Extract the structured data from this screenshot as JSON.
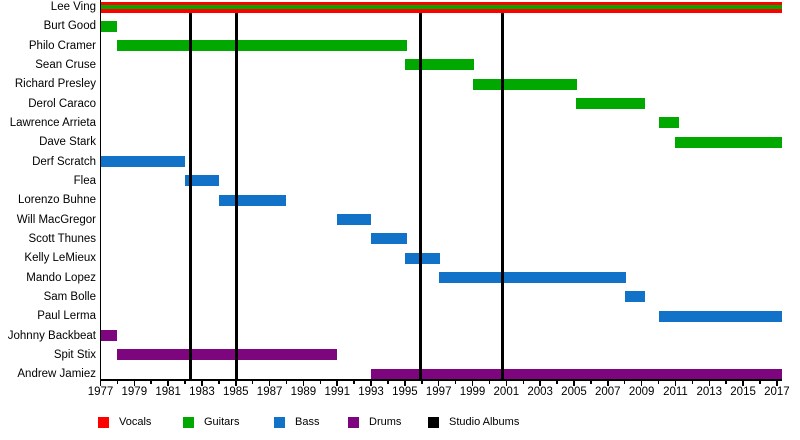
{
  "chart_data": {
    "type": "timeline",
    "description": "Band members timeline (gantt-style) with studio album markers",
    "x_axis": {
      "start": 1977,
      "end": 2017.3,
      "labeled_ticks": [
        1977,
        1979,
        1981,
        1983,
        1985,
        1987,
        1989,
        1991,
        1993,
        1995,
        1997,
        1999,
        2001,
        2003,
        2005,
        2007,
        2009,
        2011,
        2013,
        2015,
        2017
      ],
      "minor_tick_every_year": true
    },
    "colors": {
      "vocals": "#ff0000",
      "guitars": "#00a800",
      "bass": "#1272c8",
      "drums": "#7d057d",
      "albums": "#000000"
    },
    "rows": [
      {
        "name": "Lee Ving",
        "periods": [
          {
            "start": 1977,
            "end": 2017.3,
            "roles": [
              "vocals",
              "guitars"
            ]
          }
        ]
      },
      {
        "name": "Burt Good",
        "periods": [
          {
            "start": 1977,
            "end": 1978,
            "roles": [
              "guitars"
            ]
          }
        ]
      },
      {
        "name": "Philo Cramer",
        "periods": [
          {
            "start": 1978,
            "end": 1995.1,
            "roles": [
              "guitars"
            ]
          }
        ]
      },
      {
        "name": "Sean Cruse",
        "periods": [
          {
            "start": 1995,
            "end": 1999.1,
            "roles": [
              "guitars"
            ]
          }
        ]
      },
      {
        "name": "Richard Presley",
        "periods": [
          {
            "start": 1999,
            "end": 2005.2,
            "roles": [
              "guitars"
            ]
          }
        ]
      },
      {
        "name": "Derol Caraco",
        "periods": [
          {
            "start": 2005.1,
            "end": 2009.2,
            "roles": [
              "guitars"
            ]
          }
        ]
      },
      {
        "name": "Lawrence Arrieta",
        "periods": [
          {
            "start": 2010,
            "end": 2011.2,
            "roles": [
              "guitars"
            ]
          }
        ]
      },
      {
        "name": "Dave Stark",
        "periods": [
          {
            "start": 2011,
            "end": 2017.3,
            "roles": [
              "guitars"
            ]
          }
        ]
      },
      {
        "name": "Derf Scratch",
        "periods": [
          {
            "start": 1977,
            "end": 1982,
            "roles": [
              "bass"
            ]
          }
        ]
      },
      {
        "name": "Flea",
        "periods": [
          {
            "start": 1982,
            "end": 1984,
            "roles": [
              "bass"
            ]
          }
        ]
      },
      {
        "name": "Lorenzo Buhne",
        "periods": [
          {
            "start": 1984,
            "end": 1988,
            "roles": [
              "bass"
            ]
          }
        ]
      },
      {
        "name": "Will MacGregor",
        "periods": [
          {
            "start": 1991,
            "end": 1993,
            "roles": [
              "bass"
            ]
          }
        ]
      },
      {
        "name": "Scott Thunes",
        "periods": [
          {
            "start": 1993,
            "end": 1995.1,
            "roles": [
              "bass"
            ]
          }
        ]
      },
      {
        "name": "Kelly LeMieux",
        "periods": [
          {
            "start": 1995,
            "end": 1997.1,
            "roles": [
              "bass"
            ]
          }
        ]
      },
      {
        "name": "Mando Lopez",
        "periods": [
          {
            "start": 1997,
            "end": 2008.1,
            "roles": [
              "bass"
            ]
          }
        ]
      },
      {
        "name": "Sam Bolle",
        "periods": [
          {
            "start": 2008,
            "end": 2009.2,
            "roles": [
              "bass"
            ]
          }
        ]
      },
      {
        "name": "Paul Lerma",
        "periods": [
          {
            "start": 2010,
            "end": 2017.3,
            "roles": [
              "bass"
            ]
          }
        ]
      },
      {
        "name": "Johnny Backbeat",
        "periods": [
          {
            "start": 1977,
            "end": 1978,
            "roles": [
              "drums"
            ]
          }
        ]
      },
      {
        "name": "Spit Stix",
        "periods": [
          {
            "start": 1978,
            "end": 1991,
            "roles": [
              "drums"
            ]
          }
        ]
      },
      {
        "name": "Andrew Jamiez",
        "periods": [
          {
            "start": 1993,
            "end": 2017.3,
            "roles": [
              "drums"
            ]
          }
        ]
      }
    ],
    "album_lines": [
      1982.35,
      1985.05,
      1995.9,
      2000.8
    ],
    "legend": [
      {
        "label": "Vocals",
        "role": "vocals"
      },
      {
        "label": "Guitars",
        "role": "guitars"
      },
      {
        "label": "Bass",
        "role": "bass"
      },
      {
        "label": "Drums",
        "role": "drums"
      },
      {
        "label": "Studio Albums",
        "role": "albums"
      }
    ],
    "legend_position": "bottom"
  }
}
